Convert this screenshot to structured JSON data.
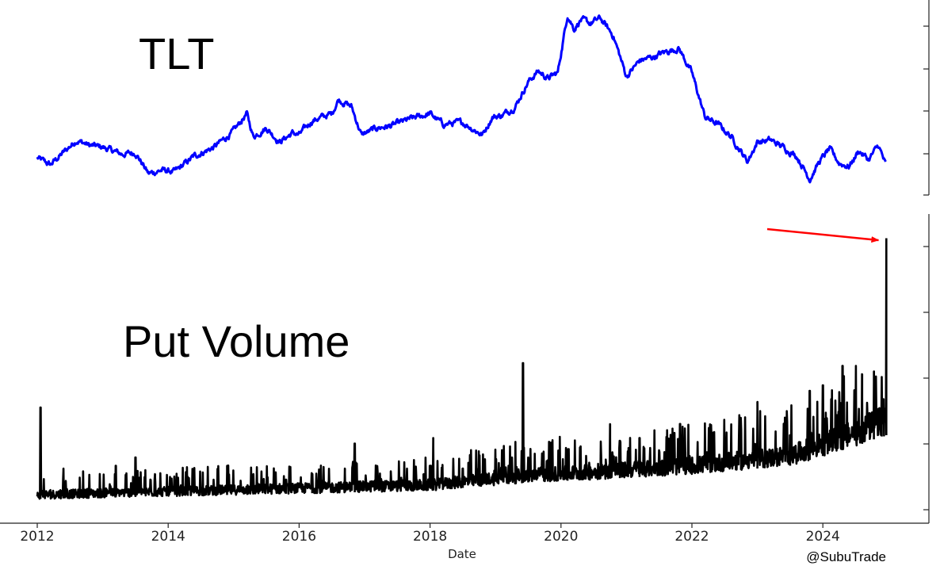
{
  "chart_data": [
    {
      "type": "line",
      "title": "TLT",
      "xlabel": "",
      "ylabel": "",
      "xlim": [
        2012,
        2025
      ],
      "ylim": [
        0,
        1
      ],
      "y_tick_labels": "hidden",
      "grid": false,
      "series": [
        {
          "name": "",
          "color": "#0000ff",
          "x": [
            2012.0,
            2012.2,
            2012.6,
            2012.8,
            2013.0,
            2013.3,
            2013.5,
            2013.7,
            2013.9,
            2014.1,
            2014.4,
            2014.7,
            2015.0,
            2015.2,
            2015.3,
            2015.5,
            2015.7,
            2015.9,
            2016.0,
            2016.2,
            2016.5,
            2016.6,
            2016.8,
            2016.95,
            2017.2,
            2017.4,
            2017.7,
            2018.0,
            2018.2,
            2018.5,
            2018.8,
            2018.95,
            2019.1,
            2019.3,
            2019.5,
            2019.65,
            2019.8,
            2019.95,
            2020.1,
            2020.2,
            2020.3,
            2020.45,
            2020.6,
            2020.8,
            2021.0,
            2021.2,
            2021.4,
            2021.6,
            2021.8,
            2022.0,
            2022.2,
            2022.4,
            2022.6,
            2022.85,
            2023.0,
            2023.2,
            2023.4,
            2023.6,
            2023.8,
            2023.95,
            2024.1,
            2024.25,
            2024.4,
            2024.55,
            2024.7,
            2024.85,
            2024.96
          ],
          "y": [
            0.17,
            0.13,
            0.27,
            0.24,
            0.23,
            0.19,
            0.2,
            0.08,
            0.1,
            0.09,
            0.18,
            0.23,
            0.32,
            0.42,
            0.29,
            0.34,
            0.26,
            0.31,
            0.3,
            0.38,
            0.42,
            0.5,
            0.46,
            0.3,
            0.34,
            0.35,
            0.39,
            0.42,
            0.36,
            0.37,
            0.3,
            0.4,
            0.41,
            0.46,
            0.6,
            0.66,
            0.62,
            0.65,
            0.98,
            0.9,
            0.95,
            0.93,
            0.96,
            0.86,
            0.63,
            0.72,
            0.74,
            0.77,
            0.79,
            0.65,
            0.4,
            0.36,
            0.29,
            0.15,
            0.26,
            0.27,
            0.23,
            0.18,
            0.05,
            0.15,
            0.22,
            0.14,
            0.12,
            0.21,
            0.16,
            0.24,
            0.13
          ]
        }
      ]
    },
    {
      "type": "line",
      "title": "Put Volume",
      "xlabel": "Date",
      "ylabel": "",
      "xlim": [
        2012,
        2025
      ],
      "ylim": [
        0,
        1
      ],
      "y_tick_labels": "hidden",
      "grid": false,
      "x_tick_labels": [
        "2012",
        "2014",
        "2016",
        "2018",
        "2020",
        "2022",
        "2024"
      ],
      "series": [
        {
          "name": "",
          "color": "#000000",
          "baseline": [
            [
              2012.0,
              0.03
            ],
            [
              2014.0,
              0.04
            ],
            [
              2016.0,
              0.05
            ],
            [
              2018.0,
              0.06
            ],
            [
              2019.5,
              0.09
            ],
            [
              2020.5,
              0.1
            ],
            [
              2022.0,
              0.12
            ],
            [
              2023.5,
              0.15
            ],
            [
              2024.5,
              0.22
            ],
            [
              2024.95,
              0.26
            ]
          ],
          "spikes": [
            [
              2012.05,
              0.36
            ],
            [
              2012.4,
              0.14
            ],
            [
              2012.7,
              0.13
            ],
            [
              2013.2,
              0.15
            ],
            [
              2013.5,
              0.18
            ],
            [
              2013.8,
              0.12
            ],
            [
              2014.3,
              0.11
            ],
            [
              2014.9,
              0.15
            ],
            [
              2015.3,
              0.12
            ],
            [
              2015.8,
              0.1
            ],
            [
              2016.2,
              0.12
            ],
            [
              2016.7,
              0.14
            ],
            [
              2016.85,
              0.23
            ],
            [
              2017.4,
              0.13
            ],
            [
              2017.9,
              0.12
            ],
            [
              2018.05,
              0.25
            ],
            [
              2018.5,
              0.14
            ],
            [
              2019.2,
              0.15
            ],
            [
              2019.42,
              0.52
            ],
            [
              2019.5,
              0.18
            ],
            [
              2019.8,
              0.17
            ],
            [
              2020.1,
              0.2
            ],
            [
              2020.3,
              0.22
            ],
            [
              2020.75,
              0.3
            ],
            [
              2020.9,
              0.24
            ],
            [
              2021.2,
              0.25
            ],
            [
              2021.5,
              0.2
            ],
            [
              2021.9,
              0.2
            ],
            [
              2022.3,
              0.25
            ],
            [
              2022.75,
              0.28
            ],
            [
              2023.0,
              0.38
            ],
            [
              2023.5,
              0.26
            ],
            [
              2023.8,
              0.42
            ],
            [
              2024.0,
              0.44
            ],
            [
              2024.3,
              0.51
            ],
            [
              2024.6,
              0.48
            ],
            [
              2024.78,
              0.49
            ],
            [
              2024.9,
              0.47
            ],
            [
              2024.97,
              0.97
            ]
          ]
        }
      ],
      "annotations": [
        {
          "type": "arrow",
          "color": "#ff0000",
          "from": [
            2023.15,
            0.98
          ],
          "to": [
            2024.85,
            0.94
          ]
        }
      ]
    }
  ],
  "watermark": "@SubuTrade"
}
